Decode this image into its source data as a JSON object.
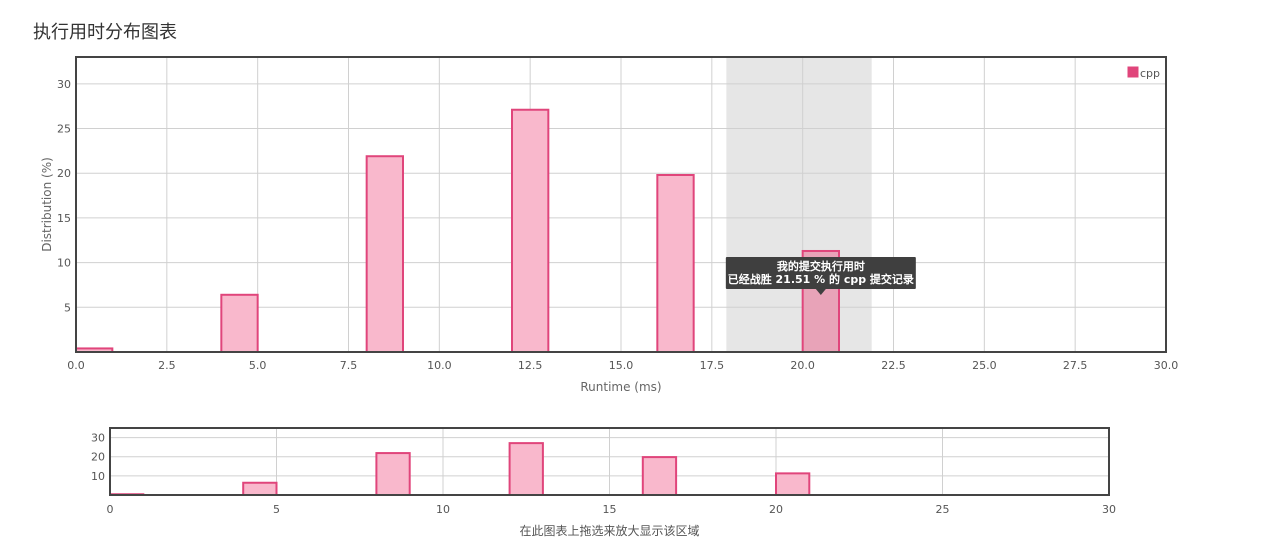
{
  "page_title": "执行用时分布图表",
  "colors": {
    "bar_fill": "#f9b8cc",
    "bar_stroke": "#e0457b",
    "bar_fill_highlight": "#e8a3b8",
    "highlight_band": "#e6e6e6",
    "grid": "#d0d0d0",
    "frame": "#444444",
    "tooltip_bg": "#3f3f3f"
  },
  "tooltip": {
    "line1": "我的提交执行用时",
    "line2": "已经战胜 21.51 % 的 cpp 提交记录"
  },
  "navigator_hint": "在此图表上拖选来放大显示该区域",
  "chart_data": [
    {
      "type": "bar",
      "title": "",
      "xlabel": "Runtime (ms)",
      "ylabel": "Distribution (%)",
      "xlim": [
        0,
        30
      ],
      "ylim": [
        0,
        33
      ],
      "x_ticks": [
        "0.0",
        "2.5",
        "5.0",
        "7.5",
        "10.0",
        "12.5",
        "15.0",
        "17.5",
        "20.0",
        "22.5",
        "25.0",
        "27.5",
        "30.0"
      ],
      "y_ticks": [
        "5",
        "10",
        "15",
        "20",
        "25",
        "30"
      ],
      "grid": true,
      "legend_position": "top-right",
      "series": [
        {
          "name": "cpp",
          "bins": [
            {
              "x0": 0,
              "x1": 1,
              "y": 0.4
            },
            {
              "x0": 4,
              "x1": 5,
              "y": 6.4
            },
            {
              "x0": 8,
              "x1": 9,
              "y": 21.9
            },
            {
              "x0": 12,
              "x1": 13,
              "y": 27.1
            },
            {
              "x0": 16,
              "x1": 17,
              "y": 19.8
            },
            {
              "x0": 20,
              "x1": 21,
              "y": 11.3
            }
          ]
        }
      ],
      "highlight_range": [
        17.9,
        21.9
      ]
    },
    {
      "type": "bar",
      "title": "",
      "xlim": [
        0,
        30
      ],
      "ylim": [
        0,
        35
      ],
      "x_ticks": [
        "0",
        "5",
        "10",
        "15",
        "20",
        "25",
        "30"
      ],
      "y_ticks": [
        "10",
        "20",
        "30"
      ],
      "grid": true,
      "series": [
        {
          "bins": [
            {
              "x0": 0,
              "x1": 1,
              "y": 0.4
            },
            {
              "x0": 4,
              "x1": 5,
              "y": 6.4
            },
            {
              "x0": 8,
              "x1": 9,
              "y": 21.9
            },
            {
              "x0": 12,
              "x1": 13,
              "y": 27.1
            },
            {
              "x0": 16,
              "x1": 17,
              "y": 19.8
            },
            {
              "x0": 20,
              "x1": 21,
              "y": 11.3
            }
          ]
        }
      ]
    }
  ]
}
